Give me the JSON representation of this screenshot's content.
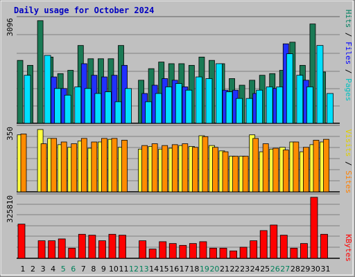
{
  "title": "Daily usage for October 2024",
  "chart_data": [
    {
      "type": "bar",
      "panel": "pages-files-hits",
      "ymax_label": "3096",
      "ylim": [
        0,
        3096
      ],
      "side_labels": [
        "Pages",
        "Files",
        "Hits"
      ],
      "categories": [
        "1",
        "2",
        "3",
        "4",
        "5",
        "6",
        "7",
        "8",
        "9",
        "10",
        "11",
        "12",
        "13",
        "14",
        "15",
        "16",
        "17",
        "18",
        "19",
        "20",
        "21",
        "22",
        "23",
        "24",
        "25",
        "26",
        "27",
        "28",
        "29",
        "30",
        "31"
      ],
      "series": [
        {
          "name": "Hits",
          "color": "#1a7a55",
          "values": [
            1900,
            1750,
            3100,
            2000,
            1500,
            1600,
            2350,
            1950,
            1950,
            1950,
            2350,
            null,
            1300,
            1650,
            1850,
            1800,
            1800,
            1750,
            2000,
            1900,
            1800,
            1350,
            1150,
            1300,
            1450,
            1500,
            1600,
            2450,
            1750,
            3000,
            1550
          ]
        },
        {
          "name": "Files",
          "color": "#2030ff",
          "values": [
            null,
            null,
            null,
            1400,
            1050,
            null,
            1800,
            1450,
            1400,
            1450,
            1750,
            null,
            900,
            1150,
            1350,
            1300,
            1100,
            null,
            null,
            null,
            1000,
            1000,
            null,
            900,
            null,
            1050,
            2400,
            null,
            1300,
            null,
            null
          ]
        },
        {
          "name": "Pages",
          "color": "#00e0ff",
          "values": [
            1450,
            null,
            2050,
            1050,
            850,
            1100,
            1050,
            900,
            950,
            650,
            1050,
            null,
            650,
            900,
            1100,
            1200,
            1000,
            1400,
            1350,
            1800,
            950,
            750,
            750,
            1000,
            1100,
            1100,
            2100,
            1450,
            1100,
            2350,
            900
          ]
        }
      ]
    },
    {
      "type": "bar",
      "panel": "visits-sites",
      "ymax_label": "350",
      "ylim": [
        0,
        350
      ],
      "side_labels": [
        "Sites",
        "Visits"
      ],
      "categories": [
        "1",
        "2",
        "3",
        "4",
        "5",
        "6",
        "7",
        "8",
        "9",
        "10",
        "11",
        "12",
        "13",
        "14",
        "15",
        "16",
        "17",
        "18",
        "19",
        "20",
        "21",
        "22",
        "23",
        "24",
        "25",
        "26",
        "27",
        "28",
        "29",
        "30",
        "31"
      ],
      "series": [
        {
          "name": "Visits",
          "color": "#ffff40",
          "values": [
            320,
            null,
            350,
            300,
            265,
            250,
            285,
            245,
            280,
            295,
            250,
            null,
            240,
            255,
            240,
            245,
            260,
            255,
            315,
            260,
            230,
            200,
            200,
            320,
            225,
            240,
            250,
            280,
            225,
            265,
            280
          ]
        },
        {
          "name": "Sites",
          "color": "#ff8c00",
          "values": [
            325,
            null,
            270,
            300,
            280,
            270,
            300,
            280,
            300,
            300,
            290,
            null,
            260,
            270,
            260,
            265,
            270,
            250,
            310,
            250,
            225,
            200,
            200,
            300,
            270,
            245,
            235,
            280,
            250,
            290,
            295
          ]
        }
      ]
    },
    {
      "type": "bar",
      "panel": "kbytes",
      "ymax_label": "325810",
      "ylim": [
        0,
        325810
      ],
      "side_labels": [
        "KBytes"
      ],
      "categories": [
        "1",
        "2",
        "3",
        "4",
        "5",
        "6",
        "7",
        "8",
        "9",
        "10",
        "11",
        "12",
        "13",
        "14",
        "15",
        "16",
        "17",
        "18",
        "19",
        "20",
        "21",
        "22",
        "23",
        "24",
        "25",
        "26",
        "27",
        "28",
        "29",
        "30",
        "31"
      ],
      "series": [
        {
          "name": "KBytes",
          "color": "#ff0000",
          "values": [
            185000,
            null,
            95000,
            95000,
            105000,
            55000,
            130000,
            125000,
            95000,
            130000,
            125000,
            null,
            95000,
            50000,
            90000,
            80000,
            70000,
            80000,
            90000,
            55000,
            55000,
            40000,
            60000,
            95000,
            150000,
            180000,
            125000,
            55000,
            80000,
            330000,
            130000
          ]
        }
      ]
    }
  ],
  "x_labels": {
    "days": [
      "1",
      "2",
      "3",
      "4",
      "5",
      "6",
      "7",
      "8",
      "9",
      "10",
      "11",
      "12",
      "13",
      "14",
      "15",
      "16",
      "17",
      "18",
      "19",
      "20",
      "21",
      "22",
      "23",
      "24",
      "25",
      "26",
      "27",
      "28",
      "29",
      "30",
      "31"
    ],
    "weekend_days": [
      "5",
      "6",
      "12",
      "13",
      "19",
      "20",
      "26",
      "27"
    ],
    "weekday_color": "#000000",
    "weekend_color": "#00805a"
  },
  "colors": {
    "panel_bg": "#c0c0c0",
    "gridline": "#808080",
    "pages_label": "#00c0c0",
    "files_label": "#0000ff",
    "hits_label": "#008060",
    "sites_label": "#ff8000",
    "visits_label": "#e0d000",
    "kbytes_label": "#ff0000",
    "separator": "#000000"
  }
}
